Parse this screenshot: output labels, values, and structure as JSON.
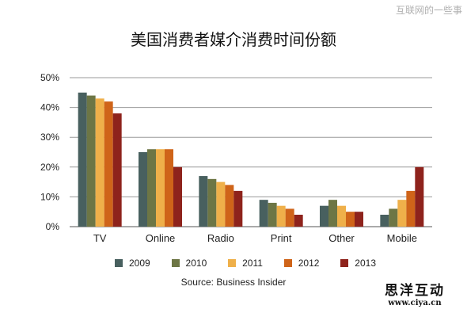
{
  "top_mark": "互联网的一些事",
  "chart_data": {
    "type": "bar",
    "title": "美国消费者媒介消费时间份额",
    "categories": [
      "TV",
      "Online",
      "Radio",
      "Print",
      "Other",
      "Mobile"
    ],
    "series": [
      {
        "name": "2009",
        "color": "#48605f",
        "values": [
          45,
          25,
          17,
          9,
          7,
          4
        ]
      },
      {
        "name": "2010",
        "color": "#6d7645",
        "values": [
          44,
          26,
          16,
          8,
          9,
          6
        ]
      },
      {
        "name": "2011",
        "color": "#efb04a",
        "values": [
          43,
          26,
          15,
          7,
          7,
          9
        ]
      },
      {
        "name": "2012",
        "color": "#cf6419",
        "values": [
          42,
          26,
          14,
          6,
          5,
          12
        ]
      },
      {
        "name": "2013",
        "color": "#8e231c",
        "values": [
          38,
          20,
          12,
          4,
          5,
          20
        ]
      }
    ],
    "ylim": [
      0,
      50
    ],
    "yticks": [
      0,
      10,
      20,
      30,
      40,
      50
    ],
    "ytick_labels": [
      "0%",
      "10%",
      "20%",
      "30%",
      "40%",
      "50%"
    ],
    "xlabel": "",
    "ylabel": "",
    "grid": true,
    "legend_position": "bottom",
    "source": "Source: Business Insider"
  },
  "brand": {
    "name": "思洋互动",
    "url": "www.ciya.cn"
  }
}
